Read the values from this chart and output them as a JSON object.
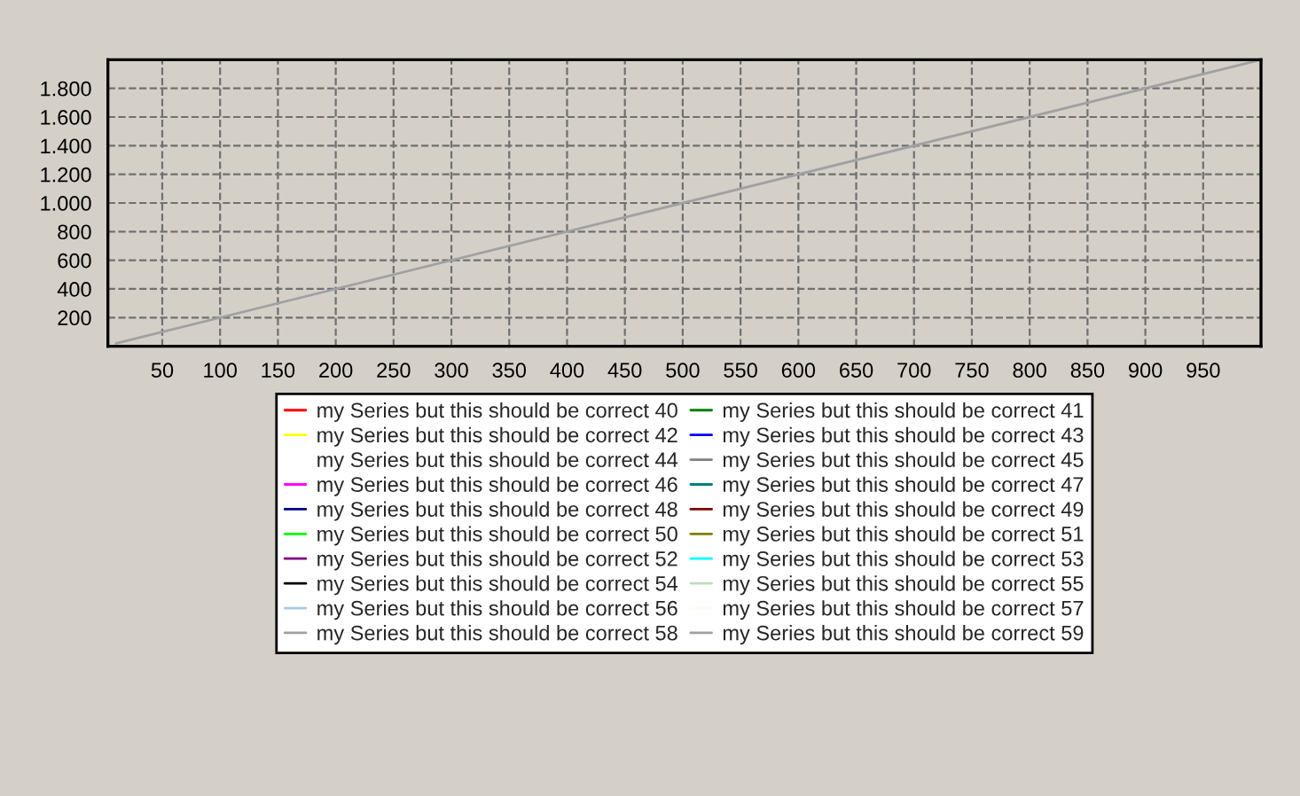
{
  "chart_data": {
    "type": "line",
    "x": [
      10,
      1000
    ],
    "xlim": [
      3,
      1000
    ],
    "xticks": [
      50,
      100,
      150,
      200,
      250,
      300,
      350,
      400,
      450,
      500,
      550,
      600,
      650,
      700,
      750,
      800,
      850,
      900,
      950
    ],
    "ylim": [
      0,
      2000
    ],
    "yticks": [
      {
        "value": 200,
        "label": "200"
      },
      {
        "value": 400,
        "label": "400"
      },
      {
        "value": 600,
        "label": "600"
      },
      {
        "value": 800,
        "label": "800"
      },
      {
        "value": 1000,
        "label": "1.000"
      },
      {
        "value": 1200,
        "label": "1.200"
      },
      {
        "value": 1400,
        "label": "1.400"
      },
      {
        "value": 1600,
        "label": "1.600"
      },
      {
        "value": 1800,
        "label": "1.800"
      }
    ],
    "grid": true,
    "legend": "bottom",
    "line_style": "solid",
    "series": [
      {
        "name": "my Series but this should be correct 40",
        "color": "#ff0000",
        "values": [
          null,
          null
        ]
      },
      {
        "name": "my Series but this should be correct 41",
        "color": "#008000",
        "values": [
          null,
          null
        ]
      },
      {
        "name": "my Series but this should be correct 42",
        "color": "#ffff00",
        "values": [
          null,
          null
        ]
      },
      {
        "name": "my Series but this should be correct 43",
        "color": "#0000ff",
        "values": [
          null,
          null
        ]
      },
      {
        "name": "my Series but this should be correct 44",
        "color": null,
        "values": [
          null,
          null
        ]
      },
      {
        "name": "my Series but this should be correct 45",
        "color": "#808080",
        "values": [
          null,
          null
        ]
      },
      {
        "name": "my Series but this should be correct 46",
        "color": "#ff00ff",
        "values": [
          null,
          null
        ]
      },
      {
        "name": "my Series but this should be correct 47",
        "color": "#008080",
        "values": [
          null,
          null
        ]
      },
      {
        "name": "my Series but this should be correct 48",
        "color": "#000080",
        "values": [
          null,
          null
        ]
      },
      {
        "name": "my Series but this should be correct 49",
        "color": "#800000",
        "values": [
          null,
          null
        ]
      },
      {
        "name": "my Series but this should be correct 50",
        "color": "#00ff00",
        "values": [
          null,
          null
        ]
      },
      {
        "name": "my Series but this should be correct 51",
        "color": "#808000",
        "values": [
          null,
          null
        ]
      },
      {
        "name": "my Series but this should be correct 52",
        "color": "#800080",
        "values": [
          null,
          null
        ]
      },
      {
        "name": "my Series but this should be correct 53",
        "color": "#00ffff",
        "values": [
          null,
          null
        ]
      },
      {
        "name": "my Series but this should be correct 54",
        "color": "#000000",
        "values": [
          null,
          null
        ]
      },
      {
        "name": "my Series but this should be correct 55",
        "color": "#c0dcc0",
        "values": [
          null,
          null
        ]
      },
      {
        "name": "my Series but this should be correct 56",
        "color": "#a6caf0",
        "values": [
          null,
          null
        ]
      },
      {
        "name": "my Series but this should be correct 57",
        "color": "#fffbf0",
        "values": [
          null,
          null
        ]
      },
      {
        "name": "my Series but this should be correct 58",
        "color": "#a0a0a4",
        "values": [
          null,
          null
        ]
      },
      {
        "name": "my Series but this should be correct 59",
        "color": "#a0a0a4",
        "values": [
          20,
          2000
        ]
      }
    ]
  }
}
